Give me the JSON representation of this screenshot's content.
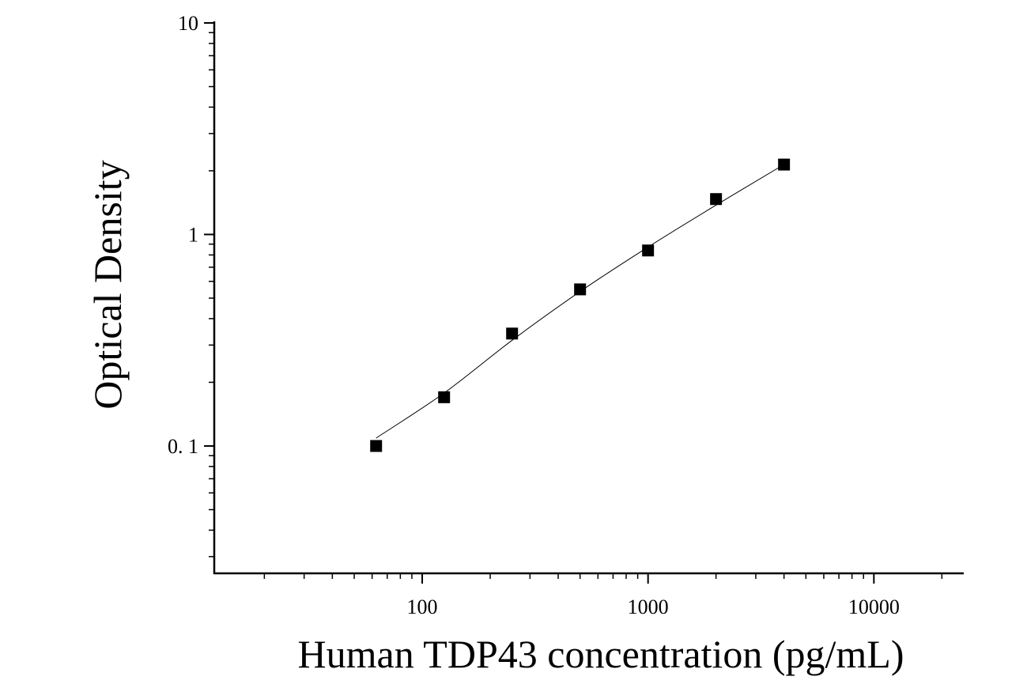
{
  "chart_data": {
    "type": "scatter",
    "title": "",
    "xlabel": "Human TDP43 concentration (pg/mL)",
    "ylabel": "Optical Density",
    "x_scale": "log",
    "y_scale": "log",
    "xlim": [
      12,
      25000
    ],
    "ylim": [
      0.025,
      10
    ],
    "x_ticks": [
      {
        "value": 100,
        "label": "100"
      },
      {
        "value": 1000,
        "label": "1000"
      },
      {
        "value": 10000,
        "label": "10000"
      }
    ],
    "y_ticks": [
      {
        "value": 0.1,
        "label": "0. 1"
      },
      {
        "value": 1,
        "label": "1"
      },
      {
        "value": 10,
        "label": "10"
      }
    ],
    "grid": false,
    "series": [
      {
        "x": [
          62.5,
          125,
          250,
          500,
          1000,
          2000,
          4000
        ],
        "y": [
          0.1,
          0.17,
          0.34,
          0.55,
          0.84,
          1.47,
          2.14
        ]
      }
    ],
    "fit_curve": {
      "x": [
        62.5,
        125,
        250,
        500,
        1000,
        2000,
        4000
      ],
      "y": [
        0.109,
        0.178,
        0.316,
        0.537,
        0.872,
        1.376,
        2.142
      ]
    },
    "colors": {
      "marker": "#000000",
      "line": "#000000",
      "axis": "#000000"
    }
  }
}
